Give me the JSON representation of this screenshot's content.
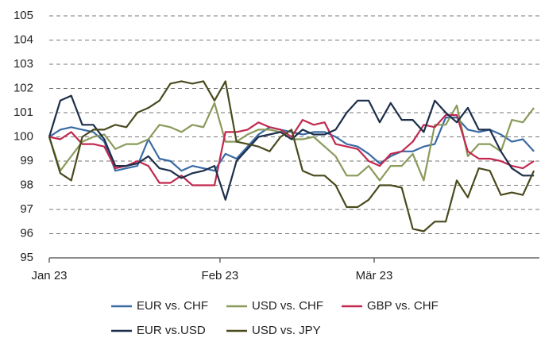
{
  "chart_data": {
    "type": "line",
    "x": [
      0,
      2,
      4,
      6,
      8,
      10,
      12,
      14,
      16,
      18,
      20,
      22,
      24,
      26,
      28,
      30,
      32,
      34,
      36,
      38,
      40,
      42,
      44,
      46,
      48,
      50,
      52,
      54,
      56,
      58,
      60,
      62,
      64,
      66,
      68,
      70,
      72,
      74,
      76,
      78,
      80,
      82,
      84,
      86,
      88
    ],
    "xlim": [
      0,
      89
    ],
    "xticks": [
      {
        "value": 0,
        "label": "Jan 23"
      },
      {
        "value": 31,
        "label": "Feb 23"
      },
      {
        "value": 59,
        "label": "Mär 23"
      }
    ],
    "ylim": [
      95,
      105
    ],
    "yticks": [
      95,
      96,
      97,
      98,
      99,
      100,
      101,
      102,
      103,
      104,
      105
    ],
    "grid": true,
    "legend": "bottom",
    "series": [
      {
        "name": "EUR vs. CHF",
        "color": "#3a6aa5",
        "values": [
          100,
          100.3,
          100.4,
          100.3,
          100.2,
          99.8,
          98.6,
          98.7,
          98.8,
          99.9,
          99.1,
          99.0,
          98.6,
          98.8,
          98.7,
          98.6,
          99.3,
          99.1,
          99.6,
          100.1,
          100.4,
          100.3,
          100.2,
          100.1,
          100.2,
          100.2,
          100,
          99.7,
          99.6,
          99.3,
          98.9,
          99.2,
          99.4,
          99.4,
          99.6,
          99.7,
          100.8,
          100.8,
          100.3,
          100.2,
          100.3,
          100.1,
          99.8,
          99.9,
          99.4
        ]
      },
      {
        "name": "USD vs. CHF",
        "color": "#8a9a5b",
        "values": [
          100,
          98.6,
          99.2,
          99.8,
          100,
          100.1,
          99.5,
          99.7,
          99.7,
          99.9,
          100.5,
          100.4,
          100.2,
          100.5,
          100.4,
          101.4,
          99.8,
          99.8,
          100.1,
          100.3,
          100.3,
          100.2,
          99.9,
          99.9,
          100,
          99.6,
          99.2,
          98.4,
          98.4,
          98.8,
          98.2,
          98.8,
          98.8,
          99.3,
          98.2,
          100.5,
          100.5,
          101.3,
          99.2,
          99.7,
          99.7,
          99.4,
          100.7,
          100.6,
          101.2
        ]
      },
      {
        "name": "GBP vs. CHF",
        "color": "#c2284f",
        "values": [
          100,
          99.9,
          100.2,
          99.7,
          99.7,
          99.6,
          98.7,
          98.8,
          99.0,
          98.8,
          98.1,
          98.1,
          98.4,
          98.0,
          98.0,
          98.0,
          100.2,
          100.2,
          100.3,
          100.6,
          100.4,
          100.3,
          100.0,
          100.7,
          100.5,
          100.6,
          99.7,
          99.6,
          99.5,
          99.0,
          98.8,
          99.3,
          99.4,
          99.8,
          100.5,
          100.4,
          100.9,
          100.9,
          99.4,
          99.1,
          99.1,
          99.0,
          98.8,
          98.7,
          99.0
        ]
      },
      {
        "name": "EUR vs.USD",
        "color": "#1c2e4a",
        "values": [
          100,
          101.5,
          101.7,
          100.5,
          100.5,
          99.9,
          98.8,
          98.8,
          98.9,
          99.2,
          98.7,
          98.6,
          98.3,
          98.5,
          98.6,
          98.8,
          97.4,
          99.0,
          99.5,
          100.0,
          100.1,
          100.2,
          99.9,
          100.3,
          100.1,
          100.1,
          100.3,
          101.0,
          101.5,
          101.5,
          100.6,
          101.4,
          100.7,
          100.7,
          100.2,
          101.5,
          101.0,
          100.6,
          101.2,
          100.3,
          100.3,
          99.4,
          98.7,
          98.4,
          98.4
        ]
      },
      {
        "name": "USD vs. JPY",
        "color": "#4a4a1e",
        "values": [
          100,
          98.5,
          98.2,
          100,
          100.3,
          100.3,
          100.5,
          100.4,
          101.0,
          101.2,
          101.5,
          102.2,
          102.3,
          102.2,
          102.3,
          101.5,
          102.3,
          99.8,
          99.7,
          99.6,
          99.4,
          100.0,
          100.3,
          98.6,
          98.4,
          98.4,
          98.0,
          97.1,
          97.1,
          97.4,
          98.0,
          98.0,
          97.9,
          96.2,
          96.1,
          96.5,
          96.5,
          98.2,
          97.5,
          98.7,
          98.6,
          97.6,
          97.7,
          97.6,
          98.6
        ]
      }
    ]
  }
}
